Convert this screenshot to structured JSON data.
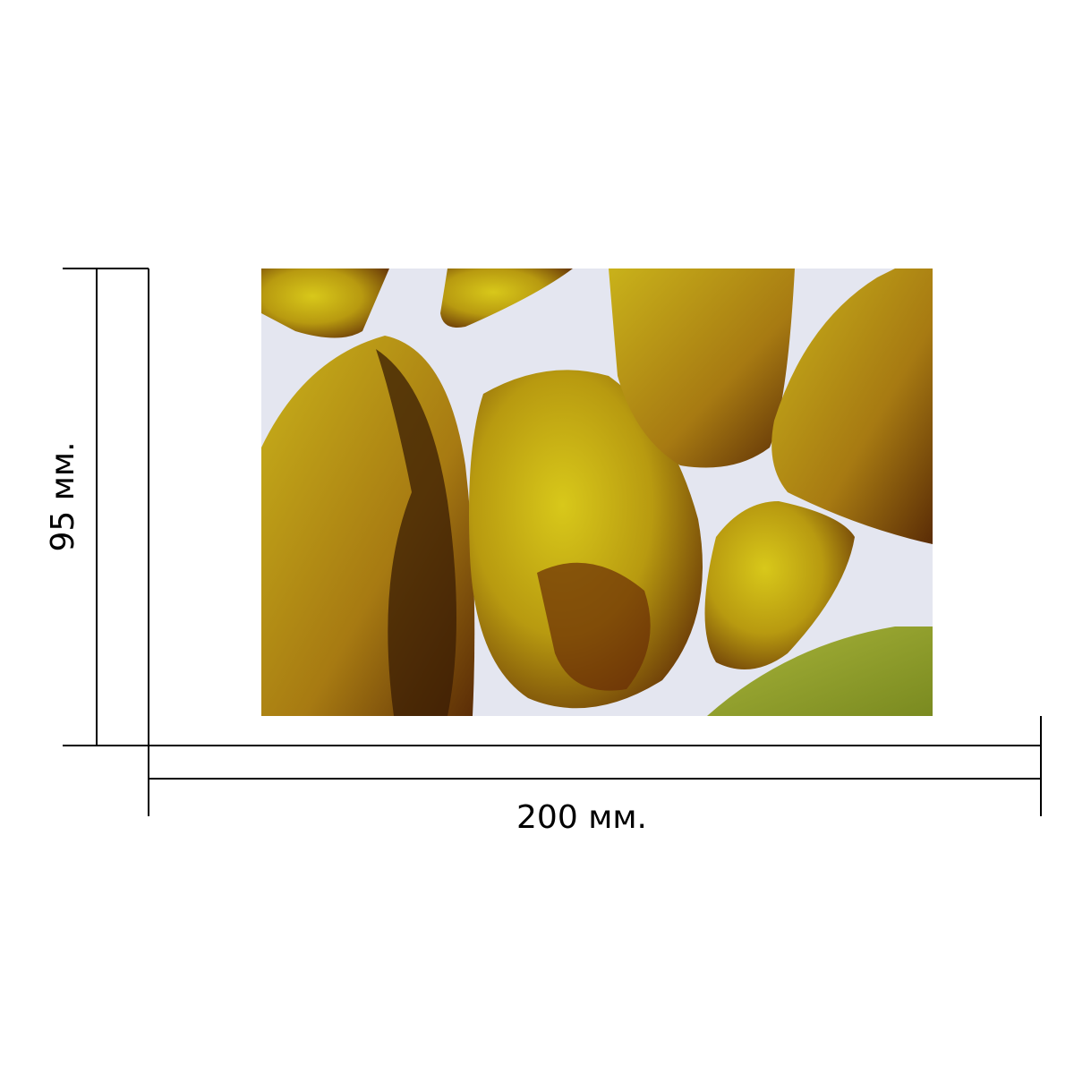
{
  "dimensions": {
    "height_label": "95 мм.",
    "width_label": "200 мм."
  }
}
